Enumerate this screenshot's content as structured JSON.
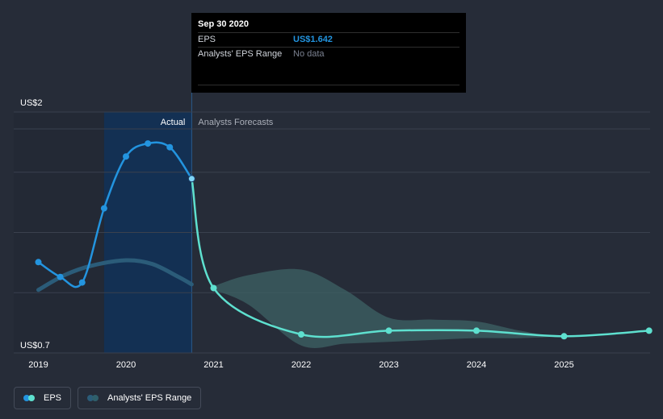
{
  "tooltip": {
    "date": "Sep 30 2020",
    "rows": [
      {
        "label": "EPS",
        "value": "US$1.642"
      },
      {
        "label": "Analysts' EPS Range",
        "value": "No data"
      }
    ]
  },
  "legend": [
    {
      "label": "EPS",
      "color_a": "#2394df",
      "color_b": "#5ee0cf"
    },
    {
      "label": "Analysts' EPS Range",
      "color_a": "#2b5c79",
      "color_b": "#2f5f6b"
    }
  ],
  "colors": {
    "actual": "#2394df",
    "forecast": "#5ee0cf",
    "range_past": "#2b5c79",
    "range_future": "#3d6264",
    "highlight": "#103158",
    "grid": "#3a414e"
  },
  "chart_data": {
    "type": "line",
    "ylim": [
      0.7,
      2.0
    ],
    "y_tick_labels": [
      {
        "value": 2.0,
        "label": "US$2"
      },
      {
        "value": 0.7,
        "label": "US$0.7"
      }
    ],
    "x_ticks": [
      "2019",
      "2020",
      "2021",
      "2022",
      "2023",
      "2024",
      "2025"
    ],
    "region_labels": {
      "actual": "Actual",
      "forecast": "Analysts Forecasts"
    },
    "actual": {
      "x": [
        2019.0,
        2019.25,
        2019.5,
        2019.75,
        2020.0,
        2020.25,
        2020.5,
        2020.75
      ],
      "y": [
        1.19,
        1.11,
        1.08,
        1.48,
        1.76,
        1.83,
        1.81,
        1.64
      ]
    },
    "forecast": {
      "x": [
        2020.75,
        2021.0,
        2022.0,
        2023.0,
        2024.0,
        2025.0,
        2025.97
      ],
      "y": [
        1.64,
        1.05,
        0.8,
        0.82,
        0.82,
        0.79,
        0.82
      ]
    },
    "range_past": {
      "x": [
        2019.0,
        2019.3,
        2019.6,
        2020.0,
        2020.3,
        2020.6,
        2020.75
      ],
      "y": [
        1.04,
        1.12,
        1.17,
        1.2,
        1.18,
        1.11,
        1.07
      ]
    },
    "range_future": {
      "x": [
        2021.0,
        2021.4,
        2022.0,
        2022.5,
        2023.0,
        2023.5,
        2024.0,
        2024.5,
        2025.0,
        2025.97
      ],
      "high": [
        1.06,
        1.12,
        1.15,
        1.04,
        0.89,
        0.88,
        0.87,
        0.82,
        0.79,
        0.82
      ],
      "low": [
        1.04,
        0.96,
        0.74,
        0.75,
        0.76,
        0.77,
        0.78,
        0.78,
        0.79,
        0.82
      ]
    },
    "highlight_range": [
      2019.75,
      2020.75
    ]
  }
}
